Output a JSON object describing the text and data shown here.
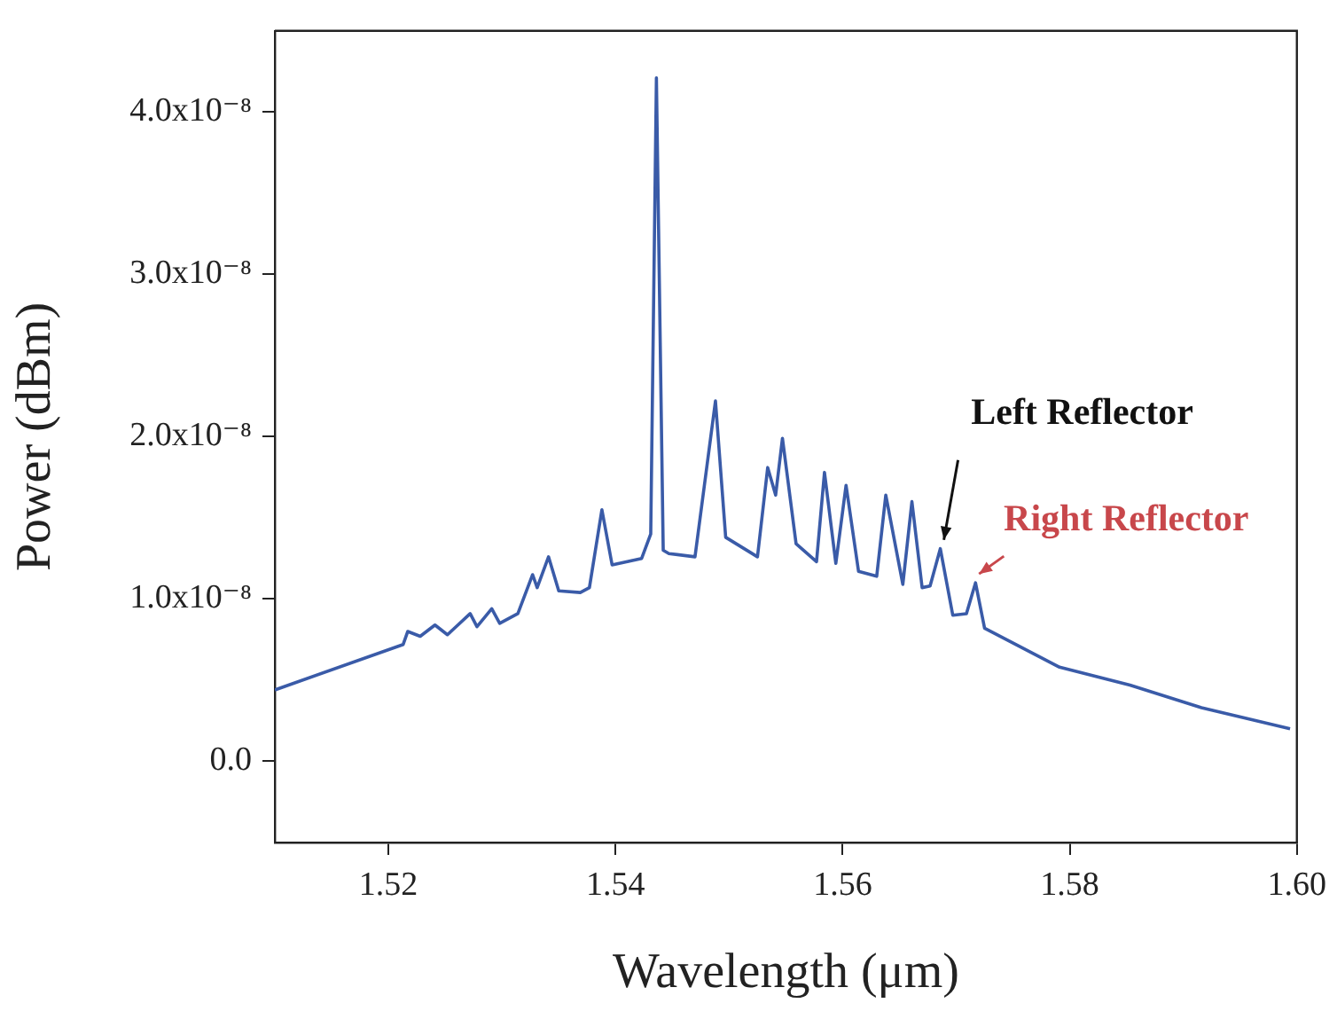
{
  "chart_data": {
    "type": "line",
    "xlabel": "Wavelength (μm)",
    "ylabel": "Power (dBm)",
    "x": [
      1.51,
      1.5213,
      1.5217,
      1.5228,
      1.5241,
      1.5252,
      1.5272,
      1.5278,
      1.5291,
      1.5298,
      1.5314,
      1.5327,
      1.5331,
      1.5341,
      1.535,
      1.5369,
      1.5377,
      1.5388,
      1.5397,
      1.5423,
      1.5431,
      1.5436,
      1.5442,
      1.5447,
      1.547,
      1.5488,
      1.5497,
      1.5525,
      1.5534,
      1.5541,
      1.5547,
      1.5559,
      1.5577,
      1.5584,
      1.5594,
      1.5603,
      1.5614,
      1.563,
      1.5638,
      1.5653,
      1.5661,
      1.567,
      1.5677,
      1.5686,
      1.5697,
      1.5709,
      1.5717,
      1.5725,
      1.5791,
      1.5853,
      1.5916,
      1.5994
    ],
    "series": [
      {
        "color": "#3a5ba8",
        "values": [
          4.4e-09,
          7.2e-09,
          8e-09,
          7.7e-09,
          8.4e-09,
          7.8e-09,
          9.1e-09,
          8.3e-09,
          9.4e-09,
          8.5e-09,
          9.1e-09,
          1.15e-08,
          1.07e-08,
          1.26e-08,
          1.05e-08,
          1.04e-08,
          1.07e-08,
          1.55e-08,
          1.21e-08,
          1.25e-08,
          1.4e-08,
          4.21e-08,
          1.3e-08,
          1.28e-08,
          1.26e-08,
          2.22e-08,
          1.38e-08,
          1.26e-08,
          1.81e-08,
          1.64e-08,
          1.99e-08,
          1.34e-08,
          1.23e-08,
          1.78e-08,
          1.22e-08,
          1.7e-08,
          1.17e-08,
          1.14e-08,
          1.64e-08,
          1.09e-08,
          1.6e-08,
          1.07e-08,
          1.08e-08,
          1.31e-08,
          9e-09,
          9.1e-09,
          1.1e-08,
          8.2e-09,
          5.8e-09,
          4.7e-09,
          3.3e-09,
          2e-09
        ]
      }
    ],
    "xlim": [
      1.51,
      1.6
    ],
    "xticks": [
      {
        "value": 1.52,
        "label": "1.52"
      },
      {
        "value": 1.54,
        "label": "1.54"
      },
      {
        "value": 1.56,
        "label": "1.56"
      },
      {
        "value": 1.58,
        "label": "1.58"
      },
      {
        "value": 1.6,
        "label": "1.60"
      }
    ],
    "ylim": [
      -5e-09,
      4.5e-08
    ],
    "yticks": [
      {
        "value": 0,
        "label": "0.0"
      },
      {
        "value": 1e-08,
        "label": "1.0x10⁻⁸"
      },
      {
        "value": 2e-08,
        "label": "2.0x10⁻⁸"
      },
      {
        "value": 3e-08,
        "label": "3.0x10⁻⁸"
      },
      {
        "value": 4e-08,
        "label": "4.0x10⁻⁸"
      }
    ],
    "annotations": [
      {
        "text": "Left Reflector",
        "x": 1.5686,
        "y": 1.31e-08
      },
      {
        "text": "Right Reflector",
        "x": 1.5717,
        "y": 1.1e-08
      }
    ],
    "grid": false,
    "legend": false,
    "marker": "none",
    "line_style": "solid"
  }
}
